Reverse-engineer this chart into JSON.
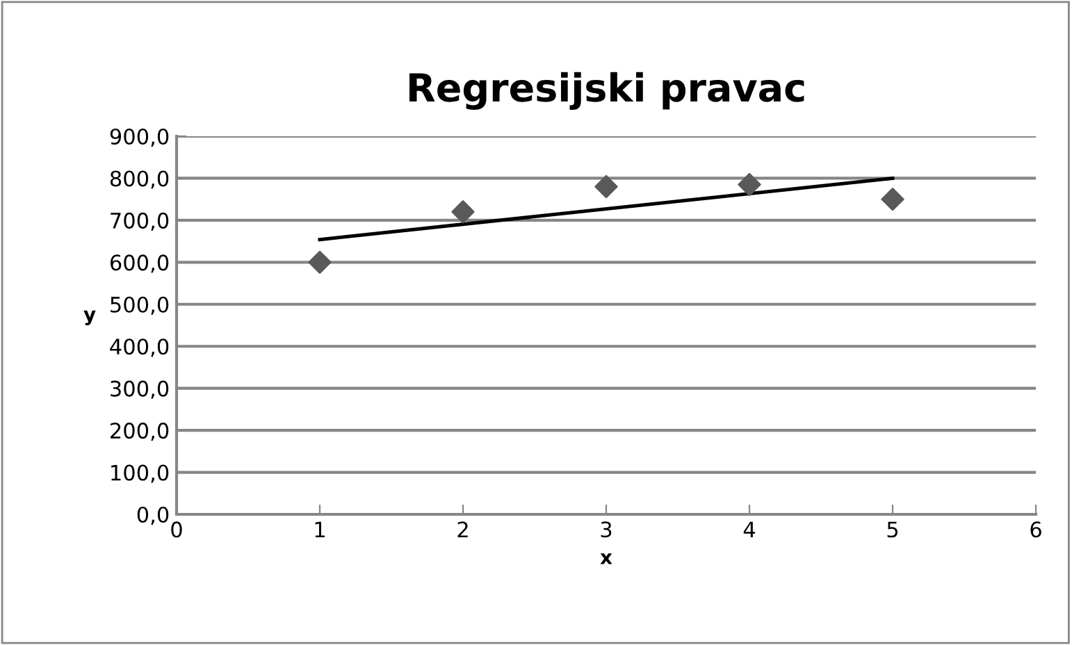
{
  "chart_data": {
    "type": "scatter",
    "title": "Regresijski pravac",
    "xlabel": "x",
    "ylabel": "y",
    "xlim": [
      0,
      6
    ],
    "xticks": [
      0,
      1,
      2,
      3,
      4,
      5,
      6
    ],
    "ylim": [
      0,
      900
    ],
    "yticks": [
      {
        "value": 0,
        "label": "0,0"
      },
      {
        "value": 100,
        "label": "100,0"
      },
      {
        "value": 200,
        "label": "200,0"
      },
      {
        "value": 300,
        "label": "300,0"
      },
      {
        "value": 400,
        "label": "400,0"
      },
      {
        "value": 500,
        "label": "500,0"
      },
      {
        "value": 600,
        "label": "600,0"
      },
      {
        "value": 700,
        "label": "700,0"
      },
      {
        "value": 800,
        "label": "800,0"
      },
      {
        "value": 900,
        "label": "900,0"
      }
    ],
    "grid": "y",
    "legend": false,
    "series": [
      {
        "color": "#595959",
        "marker": "diamond",
        "x": [
          1,
          2,
          3,
          4,
          5
        ],
        "values": [
          600,
          720,
          780,
          785,
          750
        ]
      },
      {
        "type": "line",
        "color": "#000000",
        "marker": "none",
        "line_style": "solid",
        "x": [
          1,
          5
        ],
        "values": [
          654,
          800
        ]
      }
    ]
  }
}
